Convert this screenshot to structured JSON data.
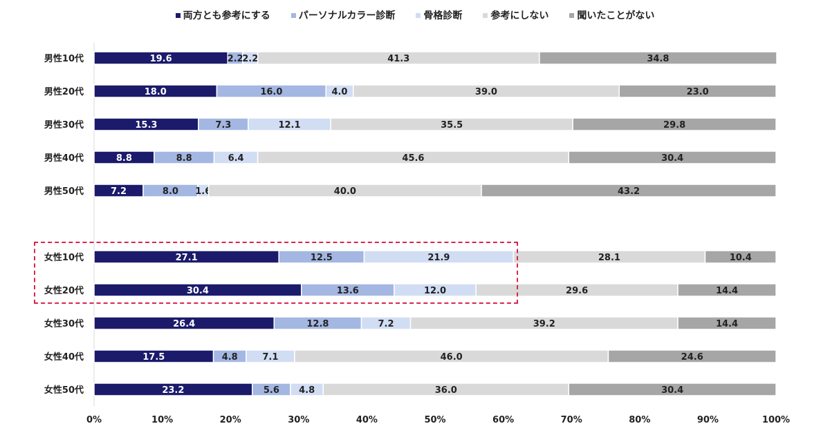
{
  "chart_data": {
    "type": "bar",
    "orientation": "horizontal",
    "stacked": true,
    "title": "",
    "xlabel": "",
    "ylabel": "",
    "xlim": [
      0,
      100
    ],
    "x_ticks": [
      "0%",
      "10%",
      "20%",
      "30%",
      "40%",
      "50%",
      "60%",
      "70%",
      "80%",
      "90%",
      "100%"
    ],
    "legend_position": "top",
    "categories": [
      "男性10代",
      "男性20代",
      "男性30代",
      "男性40代",
      "男性50代",
      "女性10代",
      "女性20代",
      "女性30代",
      "女性40代",
      "女性50代"
    ],
    "series": [
      {
        "name": "両方とも参考にする",
        "color": "#1b1a6b",
        "label_color": "#ffffff",
        "values": [
          19.6,
          18.0,
          15.3,
          8.8,
          7.2,
          27.1,
          30.4,
          26.4,
          17.5,
          23.2
        ],
        "labels": [
          "19.6",
          "18.0",
          "15.3",
          "8.8",
          "7.2",
          "27.1",
          "30.4",
          "26.4",
          "17.5",
          "23.2"
        ]
      },
      {
        "name": "パーソナルカラー診断",
        "color": "#a4b7e2",
        "label_color": "#222222",
        "values": [
          2.2,
          16.0,
          7.3,
          8.8,
          8.0,
          12.5,
          13.6,
          12.8,
          4.8,
          5.6
        ],
        "labels": [
          "2.2",
          "16.0",
          "7.3",
          "8.8",
          "8.0",
          "12.5",
          "13.6",
          "12.8",
          "4.8",
          "5.6"
        ]
      },
      {
        "name": "骨格診断",
        "color": "#d1ddf3",
        "label_color": "#222222",
        "values": [
          2.2,
          4.0,
          12.1,
          6.4,
          1.6,
          21.9,
          12.0,
          7.2,
          7.1,
          4.8
        ],
        "labels": [
          "2.2",
          "4.0",
          "12.1",
          "6.4",
          "1.6",
          "21.9",
          "12.0",
          "7.2",
          "7.1",
          "4.8"
        ]
      },
      {
        "name": "参考にしない",
        "color": "#d9d9d9",
        "label_color": "#222222",
        "values": [
          41.3,
          39.0,
          35.5,
          45.6,
          40.0,
          28.1,
          29.6,
          39.2,
          46.0,
          36.0
        ],
        "labels": [
          "41.3",
          "39.0",
          "35.5",
          "45.6",
          "40.0",
          "28.1",
          "29.6",
          "39.2",
          "46.0",
          "36.0"
        ]
      },
      {
        "name": "聞いたことがない",
        "color": "#a6a6a6",
        "label_color": "#222222",
        "values": [
          34.8,
          23.0,
          29.8,
          30.4,
          43.2,
          10.4,
          14.4,
          14.4,
          24.6,
          30.4
        ],
        "labels": [
          "34.8",
          "23.0",
          "29.8",
          "30.4",
          "43.2",
          "10.4",
          "14.4",
          "14.4",
          "24.6",
          "30.4"
        ]
      }
    ],
    "annotations": [
      {
        "type": "dashed-box",
        "color": "#d6254f",
        "covers_categories": [
          "女性10代",
          "女性20代"
        ]
      }
    ]
  }
}
